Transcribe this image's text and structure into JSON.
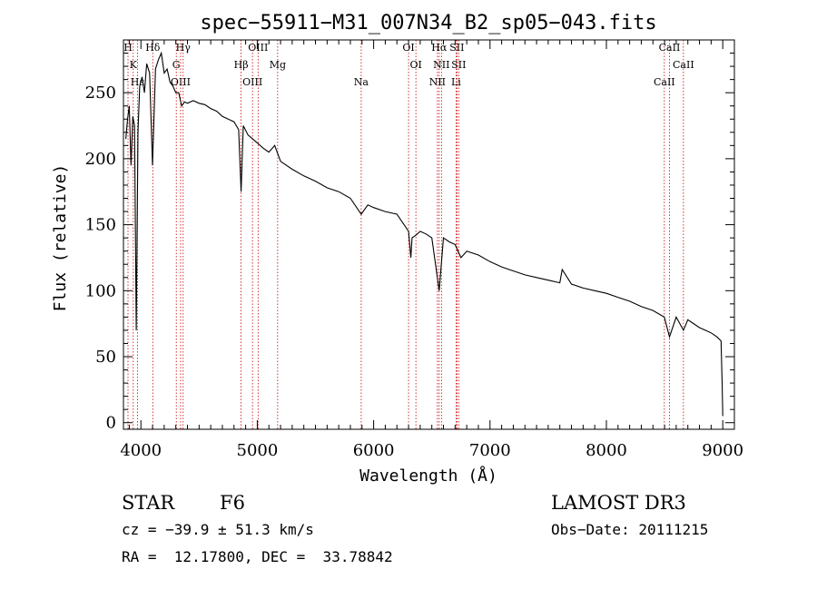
{
  "chart_data": {
    "type": "line",
    "title": "spec−55911−M31_007N34_B2_sp05−043.fits",
    "xlabel": "Wavelength (Å)",
    "ylabel": "Flux (relative)",
    "xlim": [
      3850,
      9100
    ],
    "ylim": [
      -5,
      290
    ],
    "x_ticks": [
      4000,
      5000,
      6000,
      7000,
      8000,
      9000
    ],
    "x_tick_labels": [
      "4000",
      "5000",
      "6000",
      "7000",
      "8000",
      "9000"
    ],
    "y_ticks": [
      0,
      50,
      100,
      150,
      200,
      250
    ],
    "y_tick_labels": [
      "0",
      "50",
      "100",
      "150",
      "200",
      "250"
    ],
    "grid": false,
    "series": [
      {
        "name": "flux",
        "x": [
          3870,
          3885,
          3900,
          3915,
          3930,
          3945,
          3960,
          3975,
          3990,
          4010,
          4030,
          4050,
          4075,
          4100,
          4125,
          4150,
          4175,
          4200,
          4225,
          4250,
          4275,
          4300,
          4325,
          4350,
          4375,
          4400,
          4450,
          4500,
          4550,
          4600,
          4650,
          4700,
          4750,
          4800,
          4840,
          4861,
          4880,
          4920,
          4960,
          5000,
          5050,
          5100,
          5150,
          5200,
          5300,
          5400,
          5500,
          5600,
          5700,
          5800,
          5893,
          5950,
          6000,
          6100,
          6200,
          6300,
          6320,
          6330,
          6363,
          6400,
          6450,
          6500,
          6563,
          6600,
          6650,
          6700,
          6750,
          6800,
          6900,
          7000,
          7100,
          7200,
          7300,
          7400,
          7500,
          7600,
          7620,
          7700,
          7800,
          7900,
          8000,
          8100,
          8200,
          8300,
          8400,
          8498,
          8542,
          8600,
          8662,
          8700,
          8800,
          8850,
          8900,
          8950,
          8985,
          8995,
          9000
        ],
        "y": [
          215,
          230,
          240,
          195,
          232,
          225,
          70,
          220,
          255,
          262,
          250,
          272,
          265,
          195,
          268,
          275,
          280,
          265,
          268,
          258,
          255,
          250,
          250,
          240,
          243,
          242,
          244,
          242,
          241,
          238,
          236,
          232,
          230,
          228,
          222,
          175,
          225,
          218,
          215,
          212,
          208,
          205,
          210,
          198,
          192,
          187,
          183,
          178,
          175,
          170,
          158,
          165,
          163,
          160,
          158,
          145,
          125,
          140,
          142,
          145,
          143,
          140,
          100,
          140,
          137,
          135,
          125,
          130,
          127,
          122,
          118,
          115,
          112,
          110,
          108,
          106,
          116,
          105,
          102,
          100,
          98,
          95,
          92,
          88,
          85,
          80,
          65,
          80,
          70,
          78,
          72,
          70,
          68,
          65,
          62,
          30,
          5
        ]
      }
    ],
    "spectral_lines": [
      {
        "label": "H",
        "wavelength": 3889
      },
      {
        "label": "K",
        "wavelength": 3934
      },
      {
        "label": "Hε",
        "wavelength": 3970
      },
      {
        "label": "Hδ",
        "wavelength": 4102
      },
      {
        "label": "G",
        "wavelength": 4304
      },
      {
        "label": "OIII",
        "wavelength": 4341
      },
      {
        "label": "Hγ",
        "wavelength": 4363
      },
      {
        "label": "Hβ",
        "wavelength": 4861
      },
      {
        "label": "OIII",
        "wavelength": 4959
      },
      {
        "label": "OIII",
        "wavelength": 5007
      },
      {
        "label": "Mg",
        "wavelength": 5175
      },
      {
        "label": "Na",
        "wavelength": 5893
      },
      {
        "label": "OI",
        "wavelength": 6300
      },
      {
        "label": "OI",
        "wavelength": 6363
      },
      {
        "label": "NII",
        "wavelength": 6548
      },
      {
        "label": "Hα",
        "wavelength": 6563
      },
      {
        "label": "NII",
        "wavelength": 6583
      },
      {
        "label": "Li",
        "wavelength": 6708
      },
      {
        "label": "SII",
        "wavelength": 6716
      },
      {
        "label": "SII",
        "wavelength": 6731
      },
      {
        "label": "CaII",
        "wavelength": 8498
      },
      {
        "label": "CaII",
        "wavelength": 8542
      },
      {
        "label": "CaII",
        "wavelength": 8662
      }
    ]
  },
  "info": {
    "object_class": "STAR",
    "subclass": "F6",
    "survey": "LAMOST DR3",
    "redshift": "cz = −39.9 ± 51.3 km/s",
    "obs_date": "Obs−Date: 20111215",
    "coords": "RA =  12.17800, DEC =  33.78842"
  },
  "colors": {
    "axis": "#000000",
    "spectrum": "#000000",
    "line_markers": "#cc0000"
  }
}
